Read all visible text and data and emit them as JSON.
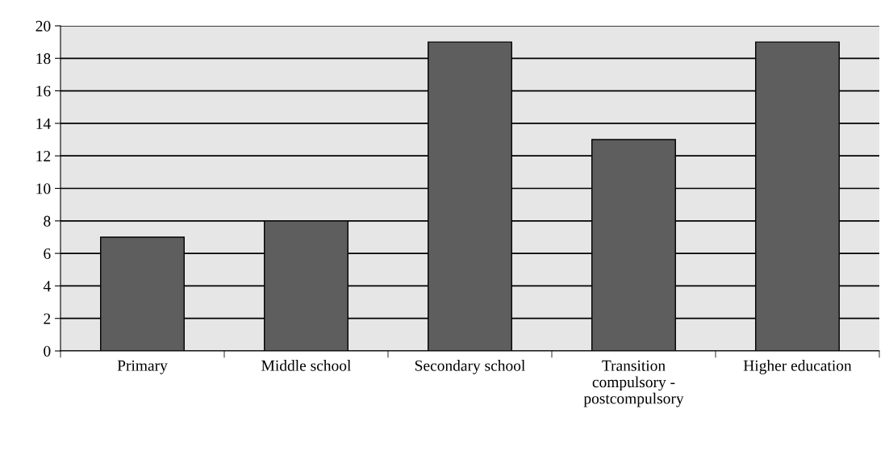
{
  "chart_data": {
    "type": "bar",
    "categories": [
      "Primary",
      "Middle school",
      "Secondary school",
      "Transition\ncompulsory -\npostcompulsory",
      "Higher education"
    ],
    "values": [
      7,
      8,
      19,
      13,
      19
    ],
    "color": "#5e5e5e",
    "ylim": [
      0,
      20
    ],
    "yticks": [
      0,
      2,
      4,
      6,
      8,
      10,
      12,
      14,
      16,
      18,
      20
    ],
    "grid": "y",
    "legend": false
  }
}
